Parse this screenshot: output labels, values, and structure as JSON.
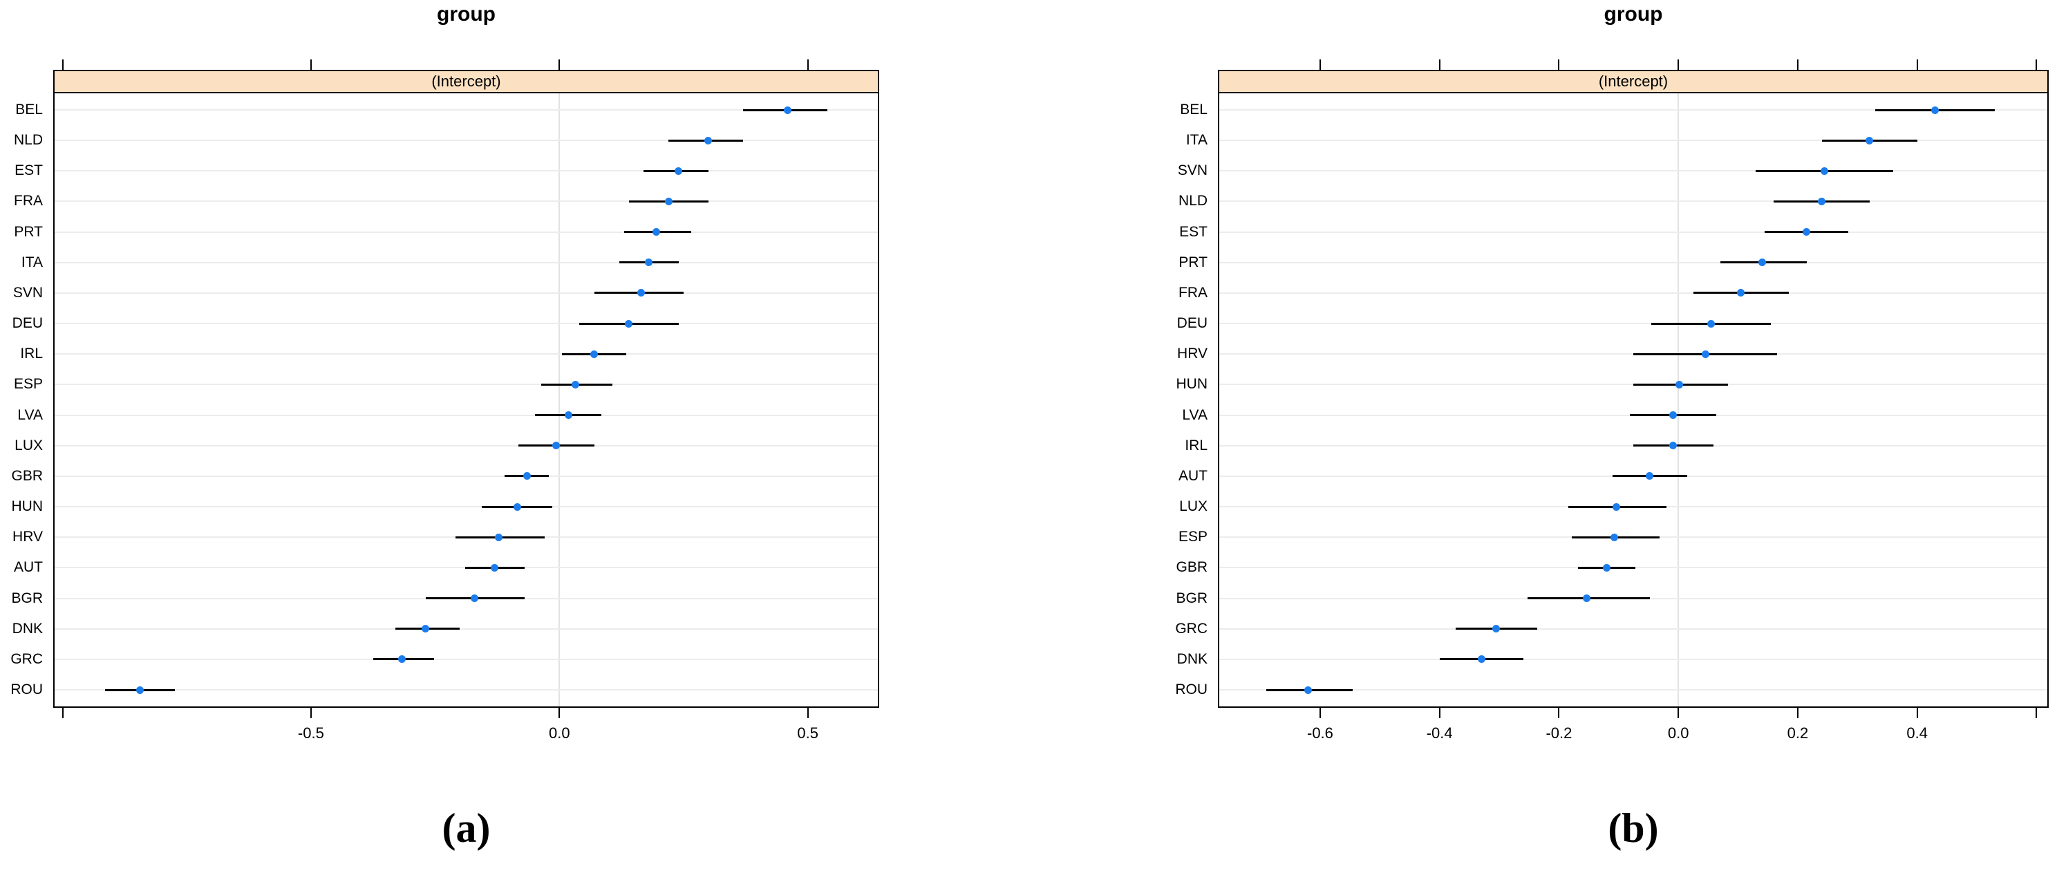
{
  "colors": {
    "dot": "#1B7CED",
    "interval": "#000000",
    "strip_bg": "#FBE1C1",
    "grid": "#ECECEC",
    "refline": "#E2E2E2",
    "panel_border": "#000000",
    "background": "#FFFFFF",
    "text": "#000000"
  },
  "chart_data": [
    {
      "type": "scatter",
      "subtype": "dotplot-with-intervals",
      "panel": "a",
      "title": "group",
      "strip_label": "(Intercept)",
      "caption": "(a)",
      "xlabel": "",
      "ylabel": "",
      "legend": "none",
      "grid": "light horizontal line per category; light vertical reference line at 0",
      "xlim": [
        -1.016,
        0.641
      ],
      "refline_x": 0.0,
      "xticks": [
        {
          "v": -1.0,
          "label": ""
        },
        {
          "v": -0.5,
          "label": "-0.5"
        },
        {
          "v": 0.0,
          "label": "0.0"
        },
        {
          "v": 0.5,
          "label": "0.5"
        }
      ],
      "points": [
        {
          "label": "BEL",
          "value": 0.46,
          "lo": 0.37,
          "hi": 0.54
        },
        {
          "label": "NLD",
          "value": 0.3,
          "lo": 0.22,
          "hi": 0.37
        },
        {
          "label": "EST",
          "value": 0.24,
          "lo": 0.17,
          "hi": 0.3
        },
        {
          "label": "FRA",
          "value": 0.22,
          "lo": 0.14,
          "hi": 0.3
        },
        {
          "label": "PRT",
          "value": 0.195,
          "lo": 0.13,
          "hi": 0.265
        },
        {
          "label": "ITA",
          "value": 0.18,
          "lo": 0.12,
          "hi": 0.24
        },
        {
          "label": "SVN",
          "value": 0.165,
          "lo": 0.07,
          "hi": 0.25
        },
        {
          "label": "DEU",
          "value": 0.14,
          "lo": 0.04,
          "hi": 0.24
        },
        {
          "label": "IRL",
          "value": 0.07,
          "lo": 0.005,
          "hi": 0.135
        },
        {
          "label": "ESP",
          "value": 0.033,
          "lo": -0.036,
          "hi": 0.107
        },
        {
          "label": "LVA",
          "value": 0.019,
          "lo": -0.049,
          "hi": 0.085
        },
        {
          "label": "LUX",
          "value": -0.006,
          "lo": -0.082,
          "hi": 0.07
        },
        {
          "label": "GBR",
          "value": -0.065,
          "lo": -0.11,
          "hi": -0.021
        },
        {
          "label": "HUN",
          "value": -0.084,
          "lo": -0.156,
          "hi": -0.014
        },
        {
          "label": "HRV",
          "value": -0.122,
          "lo": -0.209,
          "hi": -0.03
        },
        {
          "label": "AUT",
          "value": -0.131,
          "lo": -0.19,
          "hi": -0.07
        },
        {
          "label": "BGR",
          "value": -0.171,
          "lo": -0.269,
          "hi": -0.07
        },
        {
          "label": "DNK",
          "value": -0.269,
          "lo": -0.33,
          "hi": -0.201
        },
        {
          "label": "GRC",
          "value": -0.317,
          "lo": -0.375,
          "hi": -0.252
        },
        {
          "label": "ROU",
          "value": -0.844,
          "lo": -0.915,
          "hi": -0.774
        }
      ]
    },
    {
      "type": "scatter",
      "subtype": "dotplot-with-intervals",
      "panel": "b",
      "title": "group",
      "strip_label": "(Intercept)",
      "caption": "(b)",
      "xlabel": "",
      "ylabel": "",
      "legend": "none",
      "grid": "light horizontal line per category; light vertical reference line at 0",
      "xlim": [
        -0.769,
        0.618
      ],
      "refline_x": 0.0,
      "xticks": [
        {
          "v": -0.6,
          "label": "-0.6"
        },
        {
          "v": -0.4,
          "label": "-0.4"
        },
        {
          "v": -0.2,
          "label": "-0.2"
        },
        {
          "v": 0.0,
          "label": "0.0"
        },
        {
          "v": 0.2,
          "label": "0.2"
        },
        {
          "v": 0.4,
          "label": "0.4"
        },
        {
          "v": 0.6,
          "label": ""
        }
      ],
      "points": [
        {
          "label": "BEL",
          "value": 0.43,
          "lo": 0.33,
          "hi": 0.53
        },
        {
          "label": "ITA",
          "value": 0.32,
          "lo": 0.24,
          "hi": 0.4
        },
        {
          "label": "SVN",
          "value": 0.245,
          "lo": 0.13,
          "hi": 0.36
        },
        {
          "label": "NLD",
          "value": 0.24,
          "lo": 0.16,
          "hi": 0.32
        },
        {
          "label": "EST",
          "value": 0.215,
          "lo": 0.145,
          "hi": 0.285
        },
        {
          "label": "PRT",
          "value": 0.14,
          "lo": 0.07,
          "hi": 0.215
        },
        {
          "label": "FRA",
          "value": 0.105,
          "lo": 0.025,
          "hi": 0.185
        },
        {
          "label": "DEU",
          "value": 0.055,
          "lo": -0.045,
          "hi": 0.155
        },
        {
          "label": "HRV",
          "value": 0.045,
          "lo": -0.075,
          "hi": 0.165
        },
        {
          "label": "HUN",
          "value": 0.001,
          "lo": -0.076,
          "hi": 0.083
        },
        {
          "label": "LVA",
          "value": -0.009,
          "lo": -0.081,
          "hi": 0.064
        },
        {
          "label": "IRL",
          "value": -0.009,
          "lo": -0.076,
          "hi": 0.059
        },
        {
          "label": "AUT",
          "value": -0.048,
          "lo": -0.11,
          "hi": 0.015
        },
        {
          "label": "LUX",
          "value": -0.104,
          "lo": -0.184,
          "hi": -0.02
        },
        {
          "label": "ESP",
          "value": -0.107,
          "lo": -0.178,
          "hi": -0.031
        },
        {
          "label": "GBR",
          "value": -0.12,
          "lo": -0.168,
          "hi": -0.072
        },
        {
          "label": "BGR",
          "value": -0.154,
          "lo": -0.253,
          "hi": -0.048
        },
        {
          "label": "GRC",
          "value": -0.305,
          "lo": -0.373,
          "hi": -0.236
        },
        {
          "label": "DNK",
          "value": -0.33,
          "lo": -0.4,
          "hi": -0.26
        },
        {
          "label": "ROU",
          "value": -0.62,
          "lo": -0.69,
          "hi": -0.545
        }
      ]
    }
  ]
}
